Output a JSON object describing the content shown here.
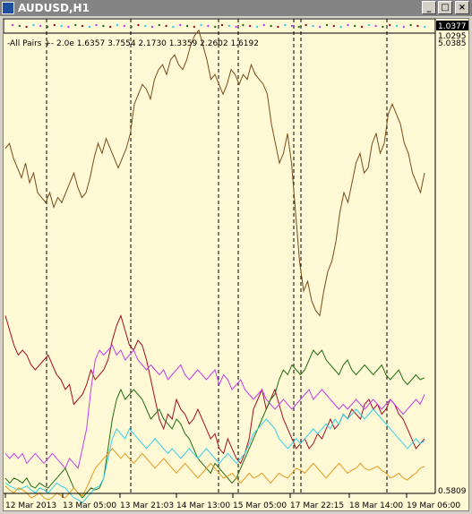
{
  "window": {
    "title": "AUDUSD,H1",
    "buttons": [
      "_",
      "□",
      "×"
    ]
  },
  "indicator": {
    "label": "-All Pairs +- 2.0e 1.6357 3.7554 2.1730 1.3359 2.2602 1.6192"
  },
  "price_axis": {
    "current_price": "1.0377",
    "second_price": "1.0295",
    "top_value": "5.0385",
    "bottom_value": "0.5809"
  },
  "time_axis": {
    "labels": [
      "12 Mar 2013",
      "13 Mar 05:00",
      "13 Mar 21:03",
      "14 Mar 13:00",
      "15 Mar 05:00",
      "17 Mar 22:15",
      "18 Mar 14:00",
      "19 Mar 06:00"
    ]
  },
  "colors": {
    "background": "#fff9d6",
    "brown": "#7a4a1a",
    "darkred": "#a01020",
    "magenta": "#c040f0",
    "green": "#1f6e12",
    "cyan": "#30d0e8",
    "orange": "#e89818"
  },
  "chart_data": {
    "type": "line",
    "series": [
      {
        "color": "#7a4a1a",
        "values": [
          4.05,
          4.1,
          3.95,
          3.85,
          3.75,
          3.9,
          3.7,
          3.8,
          3.6,
          3.55,
          3.5,
          3.6,
          3.45,
          3.55,
          3.5,
          3.6,
          3.7,
          3.8,
          3.65,
          3.55,
          3.6,
          3.75,
          3.95,
          4.1,
          4.0,
          4.15,
          4.05,
          3.95,
          3.85,
          3.95,
          4.05,
          4.2,
          4.5,
          4.6,
          4.7,
          4.65,
          4.55,
          4.75,
          4.85,
          4.9,
          4.8,
          4.95,
          5.0,
          4.9,
          4.85,
          4.95,
          5.1,
          5.2,
          5.25,
          5.1,
          4.95,
          4.75,
          4.8,
          4.7,
          4.6,
          4.7,
          4.85,
          4.8,
          4.7,
          4.8,
          4.75,
          4.9,
          4.8,
          4.75,
          4.7,
          4.6,
          4.3,
          4.1,
          3.9,
          4.0,
          4.2,
          3.9,
          3.4,
          2.9,
          2.6,
          2.7,
          2.5,
          2.4,
          2.35,
          2.6,
          2.8,
          2.9,
          3.1,
          3.4,
          3.6,
          3.5,
          3.7,
          3.9,
          4.0,
          3.8,
          3.85,
          4.1,
          4.2,
          4.0,
          4.1,
          4.4,
          4.5,
          4.4,
          4.3,
          4.1,
          4.0,
          3.8,
          3.7,
          3.6,
          3.8
        ]
      },
      {
        "color": "#a01020",
        "values": [
          2.35,
          2.2,
          2.05,
          1.95,
          2.0,
          1.95,
          1.85,
          1.8,
          1.85,
          1.9,
          1.95,
          1.85,
          1.75,
          1.7,
          1.6,
          1.65,
          1.45,
          1.5,
          1.55,
          1.65,
          1.8,
          1.7,
          1.75,
          1.8,
          1.9,
          2.1,
          2.25,
          2.35,
          2.2,
          2.05,
          2.0,
          2.1,
          2.05,
          1.9,
          1.7,
          1.5,
          1.3,
          1.2,
          1.35,
          1.3,
          1.5,
          1.4,
          1.35,
          1.25,
          1.3,
          1.4,
          1.3,
          1.2,
          1.1,
          1.15,
          1.0,
          0.95,
          1.1,
          1.0,
          0.9,
          0.85,
          0.95,
          1.1,
          1.4,
          1.5,
          1.6,
          1.4,
          1.5,
          1.6,
          1.45,
          1.3,
          1.2,
          1.1,
          1.0,
          1.05,
          1.1,
          1.0,
          1.05,
          1.15,
          1.1,
          1.2,
          1.3,
          1.2,
          1.25,
          1.35,
          1.3,
          1.4,
          1.35,
          1.3,
          1.45,
          1.5,
          1.4,
          1.45,
          1.35,
          1.4,
          1.5,
          1.45,
          1.35,
          1.3,
          1.2,
          1.1,
          1.0,
          1.05,
          1.1
        ]
      },
      {
        "color": "#c040f0",
        "values": [
          0.95,
          0.9,
          0.95,
          0.9,
          0.95,
          0.85,
          0.9,
          0.95,
          0.9,
          0.85,
          0.9,
          0.95,
          0.9,
          0.85,
          0.8,
          0.9,
          0.85,
          0.8,
          1.0,
          1.2,
          1.6,
          1.9,
          2.0,
          1.95,
          2.0,
          2.05,
          1.95,
          2.0,
          1.9,
          1.95,
          2.0,
          1.9,
          1.85,
          1.8,
          1.85,
          1.8,
          1.75,
          1.8,
          1.7,
          1.75,
          1.8,
          1.85,
          1.75,
          1.7,
          1.75,
          1.8,
          1.75,
          1.7,
          1.75,
          1.8,
          1.65,
          1.75,
          1.7,
          1.6,
          1.65,
          1.7,
          1.6,
          1.55,
          1.5,
          1.55,
          1.6,
          1.5,
          1.45,
          1.4,
          1.45,
          1.5,
          1.45,
          1.4,
          1.45,
          1.5,
          1.55,
          1.6,
          1.5,
          1.55,
          1.6,
          1.55,
          1.5,
          1.45,
          1.4,
          1.45,
          1.4,
          1.45,
          1.5,
          1.45,
          1.4,
          1.45,
          1.5,
          1.45,
          1.4,
          1.45,
          1.5,
          1.45,
          1.4,
          1.35,
          1.4,
          1.45,
          1.5,
          1.45,
          1.55
        ]
      },
      {
        "color": "#1f6e12",
        "values": [
          0.7,
          0.65,
          0.7,
          0.68,
          0.65,
          0.7,
          0.62,
          0.6,
          0.65,
          0.62,
          0.6,
          0.65,
          0.7,
          0.75,
          0.8,
          0.7,
          0.6,
          0.55,
          0.5,
          0.55,
          0.6,
          0.58,
          0.6,
          0.7,
          1.0,
          1.3,
          1.5,
          1.6,
          1.5,
          1.55,
          1.6,
          1.55,
          1.5,
          1.4,
          1.3,
          1.35,
          1.4,
          1.3,
          1.25,
          1.2,
          1.3,
          1.25,
          1.15,
          1.1,
          1.0,
          0.9,
          0.85,
          0.8,
          0.75,
          0.85,
          0.8,
          0.75,
          0.7,
          0.65,
          0.7,
          0.8,
          0.9,
          1.0,
          1.1,
          1.2,
          1.3,
          1.4,
          1.5,
          1.55,
          1.7,
          1.8,
          1.75,
          1.85,
          1.8,
          1.75,
          1.8,
          1.9,
          2.0,
          1.95,
          2.0,
          1.9,
          1.85,
          1.8,
          1.75,
          1.85,
          1.9,
          1.8,
          1.75,
          1.8,
          1.85,
          1.8,
          1.75,
          1.8,
          1.85,
          1.75,
          1.7,
          1.75,
          1.8,
          1.7,
          1.65,
          1.7,
          1.75,
          1.7,
          1.72
        ]
      },
      {
        "color": "#30d0e8",
        "values": [
          0.65,
          0.62,
          0.6,
          0.58,
          0.6,
          0.62,
          0.58,
          0.55,
          0.6,
          0.58,
          0.55,
          0.6,
          0.65,
          0.62,
          0.6,
          0.55,
          0.5,
          0.48,
          0.45,
          0.5,
          0.55,
          0.6,
          0.62,
          0.7,
          0.9,
          1.1,
          1.2,
          1.15,
          1.1,
          1.2,
          1.15,
          1.1,
          1.05,
          1.0,
          1.05,
          1.1,
          1.05,
          1.0,
          0.95,
          1.0,
          0.95,
          0.9,
          0.95,
          1.0,
          0.95,
          0.9,
          0.95,
          1.0,
          0.95,
          0.9,
          0.85,
          0.9,
          0.95,
          0.9,
          0.85,
          0.9,
          0.95,
          1.05,
          1.15,
          1.2,
          1.25,
          1.3,
          1.25,
          1.2,
          1.1,
          1.05,
          1.0,
          1.05,
          1.1,
          1.05,
          1.1,
          1.15,
          1.2,
          1.15,
          1.2,
          1.25,
          1.2,
          1.3,
          1.25,
          1.35,
          1.3,
          1.35,
          1.4,
          1.35,
          1.3,
          1.35,
          1.4,
          1.35,
          1.3,
          1.25,
          1.2,
          1.15,
          1.1,
          1.05,
          1.0,
          1.05,
          1.1,
          1.05,
          1.08
        ]
      },
      {
        "color": "#e89818",
        "values": [
          0.62,
          0.58,
          0.55,
          0.6,
          0.58,
          0.55,
          0.5,
          0.52,
          0.55,
          0.5,
          0.48,
          0.5,
          0.55,
          0.52,
          0.5,
          0.55,
          0.6,
          0.55,
          0.52,
          0.6,
          0.7,
          0.8,
          0.85,
          0.9,
          0.95,
          1.0,
          0.95,
          0.9,
          0.95,
          0.9,
          0.85,
          0.9,
          0.95,
          0.9,
          0.85,
          0.8,
          0.85,
          0.9,
          0.85,
          0.8,
          0.75,
          0.8,
          0.85,
          0.8,
          0.75,
          0.7,
          0.75,
          0.8,
          0.85,
          0.8,
          0.75,
          0.7,
          0.72,
          0.75,
          0.7,
          0.65,
          0.7,
          0.75,
          0.7,
          0.72,
          0.75,
          0.7,
          0.65,
          0.7,
          0.75,
          0.72,
          0.7,
          0.75,
          0.8,
          0.78,
          0.75,
          0.8,
          0.85,
          0.8,
          0.75,
          0.7,
          0.75,
          0.8,
          0.85,
          0.8,
          0.75,
          0.78,
          0.8,
          0.85,
          0.8,
          0.78,
          0.8,
          0.82,
          0.78,
          0.75,
          0.7,
          0.72,
          0.75,
          0.7,
          0.68,
          0.72,
          0.75,
          0.8,
          0.82
        ]
      }
    ],
    "ylim": [
      0.5809,
      5.0385
    ],
    "grid": false
  }
}
